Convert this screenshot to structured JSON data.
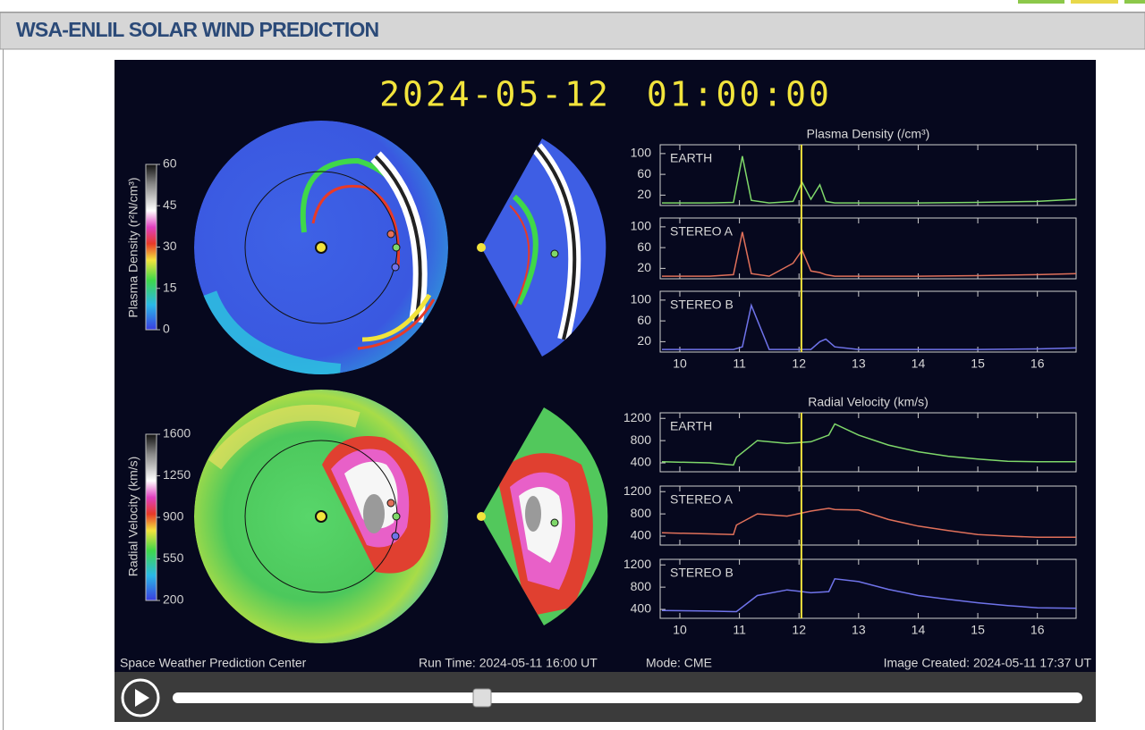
{
  "header": {
    "title": "WSA-ENLIL SOLAR WIND PREDICTION"
  },
  "viewer": {
    "timestamp": "2024-05-12 01:00:00",
    "footer": {
      "center": "Space Weather Prediction Center",
      "run_time": "Run Time: 2024-05-11 16:00 UT",
      "mode": "Mode: CME",
      "created": "Image Created: 2024-05-11 17:37 UT"
    },
    "colorbars": [
      {
        "label": "Plasma Density (r²N/cm³)",
        "lim": [
          0,
          60
        ],
        "ticks": [
          0,
          15,
          30,
          45,
          60
        ]
      },
      {
        "label": "Radial Velocity (km/s)",
        "lim": [
          200,
          1600
        ],
        "ticks": [
          200,
          550,
          900,
          1250,
          1600
        ]
      }
    ]
  },
  "chart_data": [
    {
      "type": "line",
      "title": "Plasma Density (/cm³)",
      "x": [
        9.7,
        10.5,
        10.9,
        11.05,
        11.2,
        11.5,
        11.9,
        12.05,
        12.2,
        12.35,
        12.45,
        12.6,
        13,
        14,
        15,
        16,
        16.65
      ],
      "xlim": [
        9.67,
        16.65
      ],
      "xticks": [
        10,
        11,
        12,
        13,
        14,
        15,
        16
      ],
      "ylim": [
        0,
        117
      ],
      "yticks": [
        20,
        60,
        100
      ],
      "time_marker": 12.04,
      "marker_color": "#f2e43c",
      "series": [
        {
          "name": "EARTH",
          "color": "#7fd86a",
          "values": [
            5,
            5,
            6,
            95,
            10,
            5,
            8,
            45,
            12,
            40,
            8,
            5,
            5,
            5,
            6,
            8,
            12
          ]
        },
        {
          "name": "STEREO A",
          "color": "#e0705a",
          "values": [
            5,
            5,
            8,
            90,
            10,
            5,
            30,
            55,
            15,
            12,
            8,
            5,
            5,
            5,
            6,
            8,
            10
          ]
        },
        {
          "name": "STEREO B",
          "color": "#6f73ea",
          "values": [
            5,
            5,
            5,
            10,
            90,
            5,
            5,
            5,
            5,
            20,
            25,
            10,
            5,
            5,
            5,
            6,
            8
          ]
        }
      ]
    },
    {
      "type": "line",
      "title": "Radial Velocity (km/s)",
      "x": [
        9.7,
        10.5,
        10.9,
        10.95,
        11.3,
        11.8,
        12.2,
        12.5,
        12.6,
        13,
        13.5,
        14,
        14.5,
        15,
        15.5,
        16,
        16.65
      ],
      "xlim": [
        9.67,
        16.65
      ],
      "xticks": [
        10,
        11,
        12,
        13,
        14,
        15,
        16
      ],
      "ylim": [
        240,
        1300
      ],
      "yticks": [
        400,
        800,
        1200
      ],
      "time_marker": 12.04,
      "marker_color": "#f2e43c",
      "series": [
        {
          "name": "EARTH",
          "color": "#7fd86a",
          "values": [
            420,
            400,
            360,
            500,
            800,
            750,
            780,
            900,
            1100,
            900,
            720,
            600,
            520,
            470,
            430,
            420,
            420
          ]
        },
        {
          "name": "STEREO A",
          "color": "#e0705a",
          "values": [
            460,
            440,
            430,
            600,
            800,
            760,
            850,
            900,
            880,
            870,
            700,
            580,
            500,
            430,
            400,
            380,
            380
          ]
        },
        {
          "name": "STEREO B",
          "color": "#6f73ea",
          "values": [
            380,
            370,
            360,
            360,
            650,
            750,
            700,
            720,
            950,
            900,
            760,
            650,
            580,
            520,
            470,
            430,
            420
          ]
        }
      ]
    }
  ]
}
